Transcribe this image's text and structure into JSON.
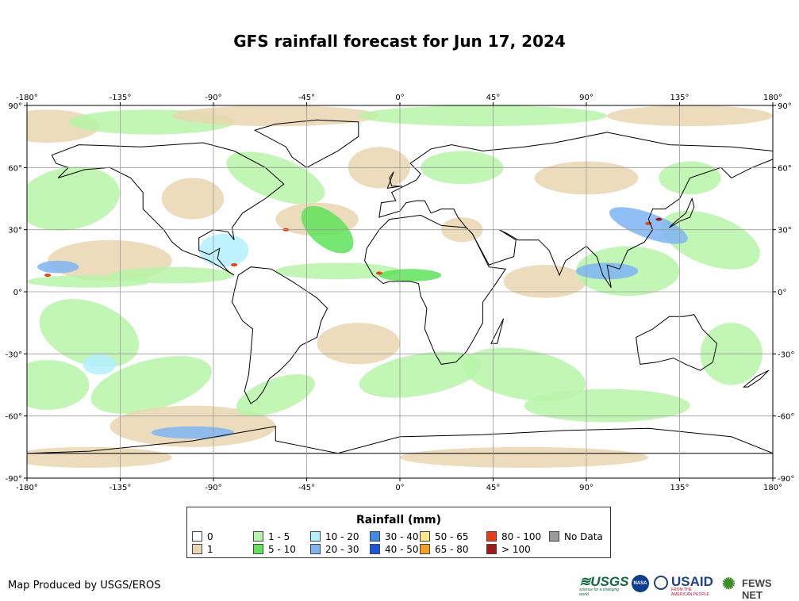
{
  "title": "GFS rainfall forecast for Jun 17, 2024",
  "map": {
    "lon_ticks": [
      "-180°",
      "-135°",
      "-90°",
      "-45°",
      "0°",
      "45°",
      "90°",
      "135°",
      "180°"
    ],
    "lat_ticks_left": [
      "90°",
      "60°",
      "30°",
      "0°",
      "-30°",
      "-60°",
      "-90°"
    ],
    "lat_ticks_right": [
      "90°",
      "60°",
      "30°",
      "0°",
      "-30°",
      "-60°",
      "-90°"
    ],
    "colors": {
      "ocean_dry": "#ffffff",
      "land_outline": "#000000",
      "grid": "#9a9a9a"
    }
  },
  "legend": {
    "title": "Rainfall (mm)",
    "items": [
      {
        "label": "0",
        "color": "#ffffff"
      },
      {
        "label": "1",
        "color": "#ead6b0"
      },
      {
        "label": "1 - 5",
        "color": "#b7f4a8"
      },
      {
        "label": "5 - 10",
        "color": "#5ee35a"
      },
      {
        "label": "10 - 20",
        "color": "#b3f0ff"
      },
      {
        "label": "20 - 30",
        "color": "#7db4f5"
      },
      {
        "label": "30 - 40",
        "color": "#3f8be8"
      },
      {
        "label": "40 - 50",
        "color": "#1d55e0"
      },
      {
        "label": "50 - 65",
        "color": "#fbe78a"
      },
      {
        "label": "65 - 80",
        "color": "#f5a01c"
      },
      {
        "label": "80 - 100",
        "color": "#ef3b12"
      },
      {
        "label": "> 100",
        "color": "#a01818"
      },
      {
        "label": "No Data",
        "color": "#9a9a9a"
      }
    ]
  },
  "credit": "Map Produced by USGS/EROS",
  "logos": {
    "usgs": "≋USGS",
    "nasa": "NASA",
    "usaid": "USAID",
    "fews": "FEWS NET",
    "usgs_tagline": "science for a changing world",
    "usaid_tagline": "FROM THE AMERICAN PEOPLE"
  }
}
